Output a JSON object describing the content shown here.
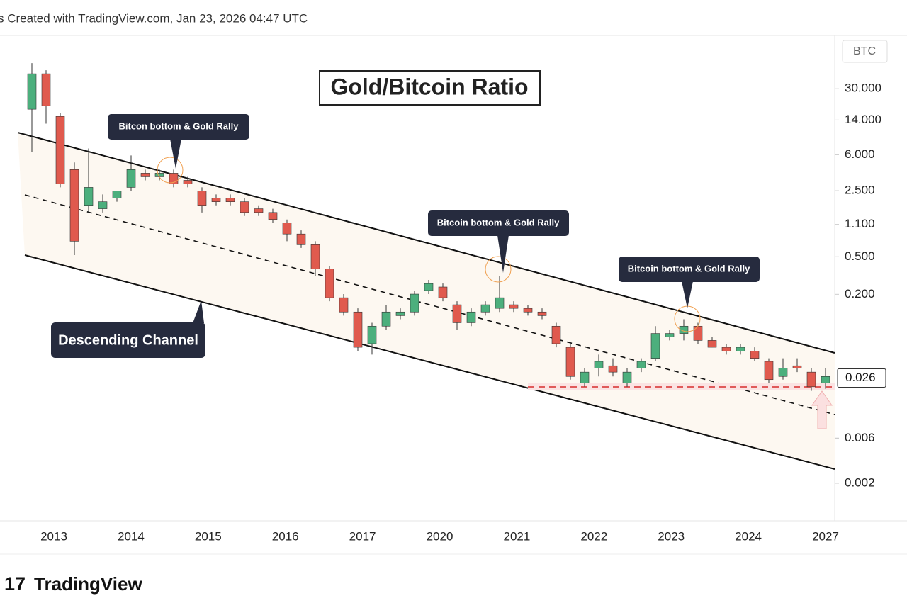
{
  "header": "s Created with TradingView.com, Jan 23, 2026 04:47 UTC",
  "footer": "TradingView",
  "chart_data": {
    "type": "candlestick",
    "title": "Gold/Bitcoin Ratio",
    "currency": "BTC",
    "log_scale": true,
    "up_color": "#4caf7d",
    "down_color": "#e05a4e",
    "ylim": [
      0.0008,
      110
    ],
    "yticks": [
      {
        "value": 30,
        "label": "30.000"
      },
      {
        "value": 14,
        "label": "14.000"
      },
      {
        "value": 6,
        "label": "6.000"
      },
      {
        "value": 2.5,
        "label": "2.500"
      },
      {
        "value": 1.1,
        "label": "1.100"
      },
      {
        "value": 0.5,
        "label": "0.500"
      },
      {
        "value": 0.2,
        "label": "0.200"
      },
      {
        "value": 0.006,
        "label": "0.006"
      },
      {
        "value": 0.006,
        "label": "0.006"
      },
      0.002
    ],
    "last_price": 0.026,
    "x_axis_labels": [
      "2013",
      "2014",
      "2015",
      "2016",
      "2017",
      "2020",
      "2021",
      "2022",
      "2023",
      "2024",
      "2027"
    ],
    "ohlc": [
      [
        18.2,
        56,
        6.4,
        43.2
      ],
      [
        43.2,
        47.1,
        12.8,
        19.8
      ],
      [
        15.3,
        16.7,
        2.71,
        2.95
      ],
      [
        4.18,
        4.97,
        0.52,
        0.73
      ],
      [
        1.75,
        7.0,
        1.47,
        2.71
      ],
      [
        1.61,
        2.28,
        1.47,
        1.91
      ],
      [
        2.09,
        2.48,
        1.91,
        2.48
      ],
      [
        2.71,
        5.9,
        2.48,
        4.18
      ],
      [
        3.83,
        4.18,
        3.22,
        3.51
      ],
      [
        3.51,
        4.18,
        3.22,
        3.83
      ],
      [
        3.83,
        4.18,
        2.71,
        2.95
      ],
      [
        3.22,
        3.51,
        2.71,
        2.95
      ],
      [
        2.48,
        2.71,
        1.47,
        1.75
      ],
      [
        2.09,
        2.28,
        1.75,
        1.91
      ],
      [
        2.09,
        2.28,
        1.75,
        1.91
      ],
      [
        1.91,
        2.09,
        1.35,
        1.47
      ],
      [
        1.61,
        1.75,
        1.35,
        1.47
      ],
      [
        1.47,
        1.61,
        1.14,
        1.24
      ],
      [
        1.14,
        1.24,
        0.73,
        0.87
      ],
      [
        0.87,
        0.95,
        0.62,
        0.67
      ],
      [
        0.67,
        0.73,
        0.31,
        0.37
      ],
      [
        0.37,
        0.4,
        0.169,
        0.184
      ],
      [
        0.184,
        0.201,
        0.119,
        0.13
      ],
      [
        0.13,
        0.142,
        0.05,
        0.055
      ],
      [
        0.06,
        0.1,
        0.046,
        0.092
      ],
      [
        0.092,
        0.155,
        0.084,
        0.13
      ],
      [
        0.119,
        0.142,
        0.109,
        0.13
      ],
      [
        0.13,
        0.219,
        0.119,
        0.201
      ],
      [
        0.219,
        0.284,
        0.201,
        0.26
      ],
      [
        0.239,
        0.26,
        0.169,
        0.184
      ],
      [
        0.155,
        0.169,
        0.084,
        0.1
      ],
      [
        0.1,
        0.142,
        0.092,
        0.13
      ],
      [
        0.13,
        0.169,
        0.119,
        0.155
      ],
      [
        0.142,
        0.31,
        0.13,
        0.184
      ],
      [
        0.155,
        0.169,
        0.13,
        0.142
      ],
      [
        0.142,
        0.155,
        0.119,
        0.13
      ],
      [
        0.13,
        0.142,
        0.109,
        0.119
      ],
      [
        0.092,
        0.1,
        0.055,
        0.06
      ],
      [
        0.055,
        0.06,
        0.025,
        0.027
      ],
      [
        0.023,
        0.033,
        0.021,
        0.03
      ],
      [
        0.033,
        0.046,
        0.027,
        0.039
      ],
      [
        0.035,
        0.042,
        0.027,
        0.03
      ],
      [
        0.023,
        0.033,
        0.021,
        0.03
      ],
      [
        0.033,
        0.042,
        0.03,
        0.039
      ],
      [
        0.042,
        0.092,
        0.039,
        0.077
      ],
      [
        0.071,
        0.084,
        0.065,
        0.077
      ],
      [
        0.077,
        0.109,
        0.065,
        0.092
      ],
      [
        0.092,
        0.1,
        0.06,
        0.065
      ],
      [
        0.065,
        0.071,
        0.055,
        0.055
      ],
      [
        0.055,
        0.06,
        0.046,
        0.05
      ],
      [
        0.05,
        0.06,
        0.046,
        0.055
      ],
      [
        0.05,
        0.055,
        0.039,
        0.042
      ],
      [
        0.039,
        0.042,
        0.023,
        0.025
      ],
      [
        0.027,
        0.042,
        0.025,
        0.033
      ],
      [
        0.035,
        0.042,
        0.03,
        0.033
      ],
      [
        0.03,
        0.033,
        0.019,
        0.021
      ],
      [
        0.023,
        0.033,
        0.02,
        0.027
      ]
    ],
    "annotations": [
      "Bitcon bottom & Gold Rally",
      "Bitcoin bottom & Gold Rally",
      "Bitcoin bottom & Gold Rally",
      "Descending Channel"
    ]
  }
}
